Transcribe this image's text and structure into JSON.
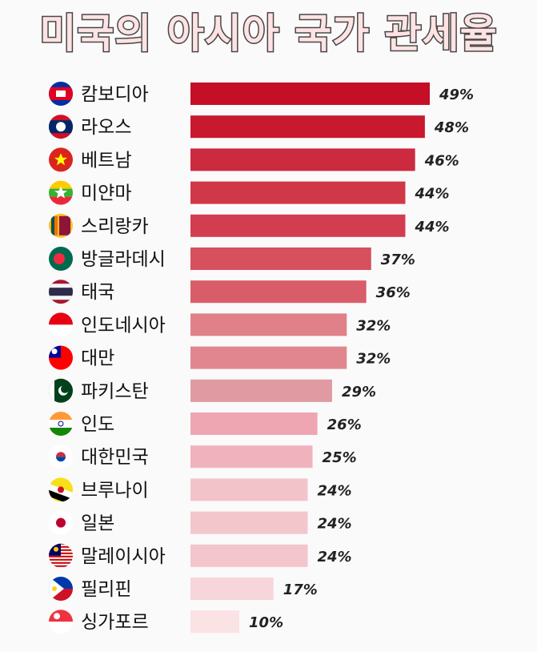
{
  "chart_data": {
    "type": "bar",
    "orientation": "horizontal",
    "title": "미국의 아시아 국가 관세율",
    "categories": [
      "캄보디아",
      "라오스",
      "베트남",
      "미얀마",
      "스리랑카",
      "방글라데시",
      "태국",
      "인도네시아",
      "대만",
      "파키스탄",
      "인도",
      "대한민국",
      "브루나이",
      "일본",
      "말레이시아",
      "필리핀",
      "싱가포르"
    ],
    "values": [
      49,
      48,
      46,
      44,
      44,
      37,
      36,
      32,
      32,
      29,
      26,
      25,
      24,
      24,
      24,
      17,
      10
    ],
    "value_labels": [
      "49%",
      "48%",
      "46%",
      "44%",
      "44%",
      "37%",
      "36%",
      "32%",
      "32%",
      "29%",
      "26%",
      "25%",
      "24%",
      "24%",
      "24%",
      "17%",
      "10%"
    ],
    "flag_icons": [
      "cambodia-flag",
      "laos-flag",
      "vietnam-flag",
      "myanmar-flag",
      "sri-lanka-flag",
      "bangladesh-flag",
      "thailand-flag",
      "indonesia-flag",
      "taiwan-flag",
      "pakistan-flag",
      "india-flag",
      "south-korea-flag",
      "brunei-flag",
      "japan-flag",
      "malaysia-flag",
      "philippines-flag",
      "singapore-flag"
    ],
    "bar_colors": [
      "#c40f27",
      "#c8192f",
      "#cc2a3f",
      "#d03848",
      "#d23e50",
      "#d6505d",
      "#d95c69",
      "#e08088",
      "#e1868e",
      "#df9aa2",
      "#eea6b2",
      "#f0b3bd",
      "#f3c3ca",
      "#f3c6cc",
      "#f3c5cc",
      "#f6d6db",
      "#fbe2e5"
    ],
    "xlim": [
      0,
      49
    ],
    "grid": false,
    "legend": "none"
  }
}
